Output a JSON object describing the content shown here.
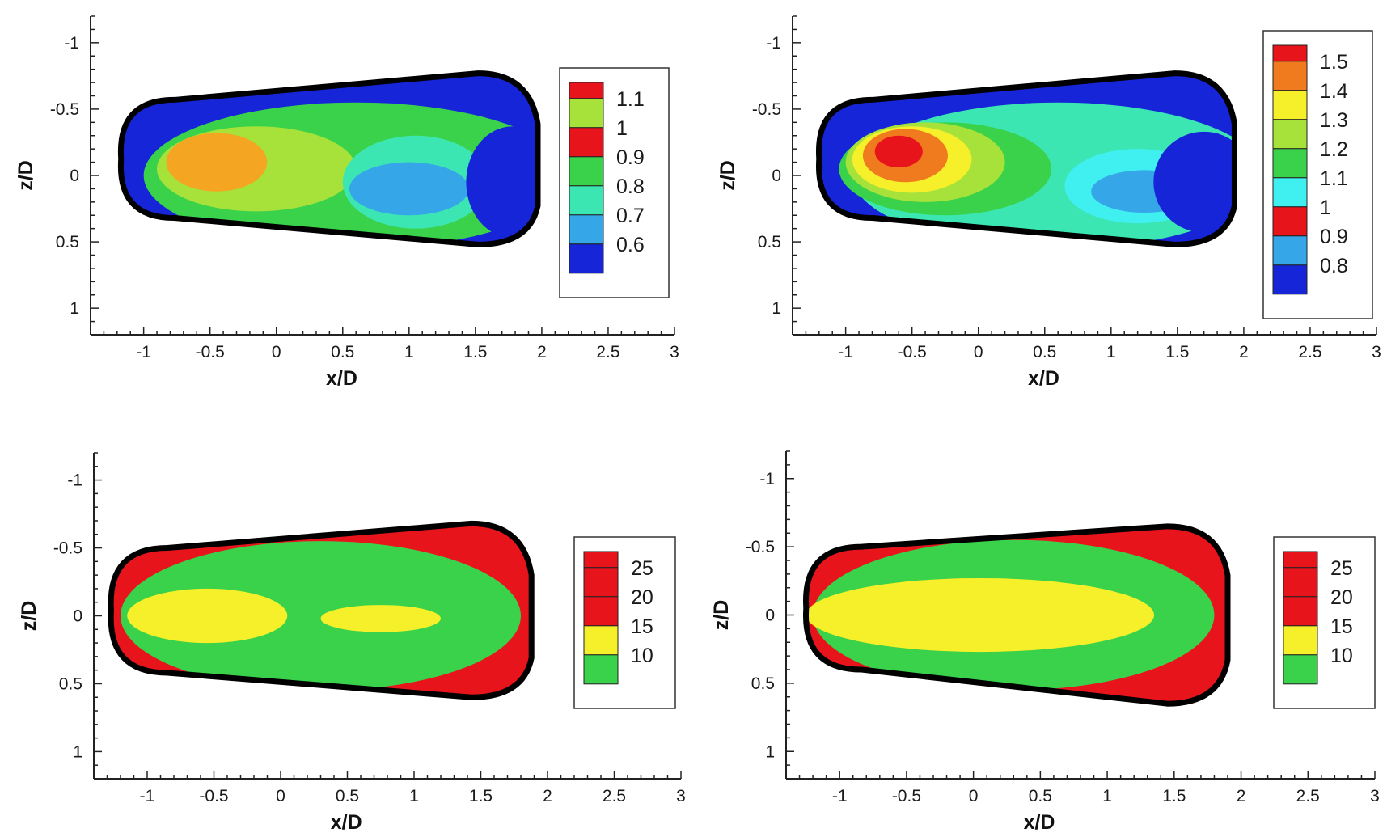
{
  "chart_data": [
    {
      "type": "heatmap",
      "xlabel": "x/D",
      "ylabel": "z/D",
      "xlim": [
        -1.4,
        3
      ],
      "ylim": [
        -1.2,
        1.2
      ],
      "y_inverted": true,
      "xticks": [
        "-1",
        "-0.5",
        "0",
        "0.5",
        "1",
        "1.5",
        "2",
        "2.5",
        "3"
      ],
      "yticks": [
        "-1",
        "-0.5",
        "0",
        "0.5",
        "1"
      ],
      "legend": {
        "position": "right",
        "levels": [
          "1.1",
          "1",
          "0.9",
          "0.8",
          "0.7",
          "0.6"
        ]
      },
      "colors": {
        "1.1": "#e8141c",
        "1": "#f4a623",
        "0.9": "#a6e23a",
        "0.8": "#3ad24a",
        "0.7": "#3be6b2",
        "0.6": "#35a6e8",
        "0.5": "#1625d8"
      },
      "outline": {
        "nose_x": -1.17,
        "tail_x": 1.97,
        "top_z": [
          -0.57,
          -0.77
        ],
        "bottom_z": [
          0.32,
          0.52
        ]
      },
      "regions": [
        {
          "level": "0.8",
          "x": 0.6,
          "z": 0.0,
          "rx": 1.6,
          "rz": 0.55
        },
        {
          "level": "0.9",
          "x": -0.15,
          "z": -0.05,
          "rx": 0.75,
          "rz": 0.32
        },
        {
          "level": "1",
          "x": -0.45,
          "z": -0.1,
          "rx": 0.38,
          "rz": 0.22
        },
        {
          "level": "0.7",
          "x": 1.05,
          "z": 0.05,
          "rx": 0.55,
          "rz": 0.35
        },
        {
          "level": "0.6",
          "x": 1.0,
          "z": 0.1,
          "rx": 0.45,
          "rz": 0.2
        },
        {
          "level": "0.5",
          "x": 1.78,
          "z": 0.05,
          "rx": 0.35,
          "rz": 0.42
        }
      ]
    },
    {
      "type": "heatmap",
      "xlabel": "x/D",
      "ylabel": "z/D",
      "xlim": [
        -1.4,
        3
      ],
      "ylim": [
        -1.2,
        1.2
      ],
      "y_inverted": true,
      "xticks": [
        "-1",
        "-0.5",
        "0",
        "0.5",
        "1",
        "1.5",
        "2",
        "2.5",
        "3"
      ],
      "yticks": [
        "-1",
        "-0.5",
        "0",
        "0.5",
        "1"
      ],
      "legend": {
        "position": "right",
        "levels": [
          "1.5",
          "1.4",
          "1.3",
          "1.2",
          "1.1",
          "1",
          "0.9",
          "0.8"
        ]
      },
      "colors": {
        "1.5": "#e8141c",
        "1.4": "#f07a1e",
        "1.3": "#f5f02a",
        "1.2": "#a6e23a",
        "1.1": "#3ad24a",
        "1": "#3be6b2",
        "0.9": "#40f0f0",
        "0.8": "#35a6e8",
        "0.7": "#1625d8"
      },
      "outline": {
        "nose_x": -1.2,
        "tail_x": 1.93,
        "top_z": [
          -0.57,
          -0.77
        ],
        "bottom_z": [
          0.32,
          0.52
        ]
      },
      "regions": [
        {
          "level": "1",
          "x": 0.6,
          "z": 0.0,
          "rx": 1.55,
          "rz": 0.55
        },
        {
          "level": "1.1",
          "x": -0.25,
          "z": -0.05,
          "rx": 0.8,
          "rz": 0.35
        },
        {
          "level": "1.2",
          "x": -0.4,
          "z": -0.1,
          "rx": 0.6,
          "rz": 0.3
        },
        {
          "level": "1.3",
          "x": -0.5,
          "z": -0.12,
          "rx": 0.45,
          "rz": 0.25
        },
        {
          "level": "1.4",
          "x": -0.55,
          "z": -0.15,
          "rx": 0.32,
          "rz": 0.2
        },
        {
          "level": "1.5",
          "x": -0.6,
          "z": -0.18,
          "rx": 0.18,
          "rz": 0.12
        },
        {
          "level": "0.9",
          "x": 1.2,
          "z": 0.08,
          "rx": 0.55,
          "rz": 0.28
        },
        {
          "level": "0.8",
          "x": 1.25,
          "z": 0.12,
          "rx": 0.4,
          "rz": 0.16
        },
        {
          "level": "0.7",
          "x": 1.7,
          "z": 0.05,
          "rx": 0.38,
          "rz": 0.38
        }
      ]
    },
    {
      "type": "heatmap",
      "xlabel": "x/D",
      "ylabel": "z/D",
      "xlim": [
        -1.4,
        3
      ],
      "ylim": [
        -1.2,
        1.2
      ],
      "y_inverted": true,
      "xticks": [
        "-1",
        "-0.5",
        "0",
        "0.5",
        "1",
        "1.5",
        "2",
        "2.5",
        "3"
      ],
      "yticks": [
        "-1",
        "-0.5",
        "0",
        "0.5",
        "1"
      ],
      "legend": {
        "position": "right",
        "levels": [
          "25",
          "20",
          "15",
          "10"
        ]
      },
      "colors": {
        "25": "#e8141c",
        "20": "#f5f02a",
        "15": "#3ad24a",
        "10": "#40f0f0",
        "5": "#1625d8"
      },
      "outline": {
        "nose_x": -1.27,
        "tail_x": 1.88,
        "top_z": [
          -0.5,
          -0.68
        ],
        "bottom_z": [
          0.42,
          0.6
        ]
      },
      "regions": [
        {
          "level": "15",
          "x": 0.3,
          "z": 0.0,
          "rx": 1.5,
          "rz": 0.55
        },
        {
          "level": "20",
          "x": -0.55,
          "z": 0.0,
          "rx": 0.6,
          "rz": 0.2
        },
        {
          "level": "20",
          "x": 0.75,
          "z": 0.02,
          "rx": 0.45,
          "rz": 0.1
        }
      ]
    },
    {
      "type": "heatmap",
      "xlabel": "x/D",
      "ylabel": "z/D",
      "xlim": [
        -1.4,
        3
      ],
      "ylim": [
        -1.2,
        1.2
      ],
      "y_inverted": true,
      "xticks": [
        "-1",
        "-0.5",
        "0",
        "0.5",
        "1",
        "1.5",
        "2",
        "2.5",
        "3"
      ],
      "yticks": [
        "-1",
        "-0.5",
        "0",
        "0.5",
        "1"
      ],
      "legend": {
        "position": "right",
        "levels": [
          "25",
          "20",
          "15",
          "10"
        ]
      },
      "colors": {
        "25": "#e8141c",
        "20": "#f5f02a",
        "15": "#3ad24a",
        "10": "#40f0f0",
        "5": "#1625d8"
      },
      "outline": {
        "nose_x": -1.25,
        "tail_x": 1.9,
        "top_z": [
          -0.5,
          -0.65
        ],
        "bottom_z": [
          0.4,
          0.65
        ]
      },
      "regions": [
        {
          "level": "15",
          "x": 0.3,
          "z": 0.0,
          "rx": 1.5,
          "rz": 0.55
        },
        {
          "level": "20",
          "x": 0.05,
          "z": 0.0,
          "rx": 1.3,
          "rz": 0.27
        }
      ]
    }
  ]
}
